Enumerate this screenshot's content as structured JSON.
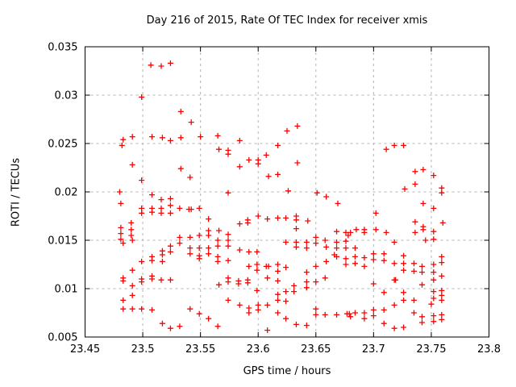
{
  "chart_data": {
    "type": "scatter",
    "title": "Day 216 of 2015, Rate Of TEC Index for receiver xmis",
    "xlabel": "GPS time / hours",
    "ylabel": "ROTI / TECUs",
    "xlim": [
      23.45,
      23.8
    ],
    "ylim": [
      0.005,
      0.035
    ],
    "x_ticks": [
      23.45,
      23.5,
      23.55,
      23.6,
      23.65,
      23.7,
      23.75,
      23.8
    ],
    "x_tick_labels": [
      "23.45",
      "23.5",
      "23.55",
      "23.6",
      "23.65",
      "23.7",
      "23.75",
      "23.8"
    ],
    "y_ticks": [
      0.005,
      0.01,
      0.015,
      0.02,
      0.025,
      0.03,
      0.035
    ],
    "y_tick_labels": [
      "0.005",
      "0.01",
      "0.015",
      "0.02",
      "0.025",
      "0.03",
      "0.035"
    ],
    "grid": true,
    "legend": "none",
    "marker": {
      "shape": "plus",
      "color": "#ff0000",
      "size": 7
    },
    "colors": {
      "background": "#ffffff",
      "axis": "#000000",
      "grid": "#b4b4b4",
      "text": "#000000"
    },
    "series_name": "xmis ROTI",
    "points": [
      [
        23.507,
        0.0331
      ],
      [
        23.516,
        0.033
      ],
      [
        23.524,
        0.0333
      ],
      [
        23.499,
        0.0298
      ],
      [
        23.533,
        0.0283
      ],
      [
        23.542,
        0.0272
      ],
      [
        23.625,
        0.0263
      ],
      [
        23.634,
        0.0268
      ],
      [
        23.483,
        0.0254
      ],
      [
        23.491,
        0.0257
      ],
      [
        23.508,
        0.0257
      ],
      [
        23.517,
        0.0256
      ],
      [
        23.524,
        0.0253
      ],
      [
        23.533,
        0.0256
      ],
      [
        23.55,
        0.0257
      ],
      [
        23.565,
        0.0258
      ],
      [
        23.482,
        0.0248
      ],
      [
        23.584,
        0.0253
      ],
      [
        23.566,
        0.0244
      ],
      [
        23.574,
        0.0243
      ],
      [
        23.574,
        0.0239
      ],
      [
        23.617,
        0.0248
      ],
      [
        23.584,
        0.0226
      ],
      [
        23.592,
        0.0233
      ],
      [
        23.6,
        0.0233
      ],
      [
        23.6,
        0.0229
      ],
      [
        23.607,
        0.0238
      ],
      [
        23.634,
        0.023
      ],
      [
        23.491,
        0.0228
      ],
      [
        23.533,
        0.0224
      ],
      [
        23.499,
        0.0212
      ],
      [
        23.541,
        0.0215
      ],
      [
        23.609,
        0.0216
      ],
      [
        23.617,
        0.0218
      ],
      [
        23.626,
        0.0201
      ],
      [
        23.574,
        0.0199
      ],
      [
        23.651,
        0.0199
      ],
      [
        23.659,
        0.0195
      ],
      [
        23.669,
        0.0188
      ],
      [
        23.711,
        0.0244
      ],
      [
        23.718,
        0.0248
      ],
      [
        23.726,
        0.0248
      ],
      [
        23.736,
        0.0221
      ],
      [
        23.743,
        0.0223
      ],
      [
        23.752,
        0.0217
      ],
      [
        23.736,
        0.0208
      ],
      [
        23.727,
        0.0203
      ],
      [
        23.759,
        0.0204
      ],
      [
        23.759,
        0.0199
      ],
      [
        23.743,
        0.0188
      ],
      [
        23.752,
        0.0183
      ],
      [
        23.702,
        0.0178
      ],
      [
        23.48,
        0.02
      ],
      [
        23.508,
        0.0197
      ],
      [
        23.516,
        0.0192
      ],
      [
        23.524,
        0.0193
      ],
      [
        23.481,
        0.0188
      ],
      [
        23.499,
        0.0183
      ],
      [
        23.499,
        0.0178
      ],
      [
        23.508,
        0.0183
      ],
      [
        23.508,
        0.0179
      ],
      [
        23.516,
        0.0183
      ],
      [
        23.516,
        0.0178
      ],
      [
        23.524,
        0.0186
      ],
      [
        23.524,
        0.0178
      ],
      [
        23.532,
        0.0183
      ],
      [
        23.54,
        0.0182
      ],
      [
        23.542,
        0.0182
      ],
      [
        23.549,
        0.0183
      ],
      [
        23.557,
        0.0172
      ],
      [
        23.481,
        0.0163
      ],
      [
        23.481,
        0.0157
      ],
      [
        23.49,
        0.0168
      ],
      [
        23.49,
        0.0161
      ],
      [
        23.49,
        0.0155
      ],
      [
        23.481,
        0.0151
      ],
      [
        23.483,
        0.0147
      ],
      [
        23.491,
        0.015
      ],
      [
        23.6,
        0.0175
      ],
      [
        23.584,
        0.0167
      ],
      [
        23.591,
        0.0171
      ],
      [
        23.591,
        0.0168
      ],
      [
        23.608,
        0.0172
      ],
      [
        23.617,
        0.0173
      ],
      [
        23.624,
        0.0173
      ],
      [
        23.633,
        0.0175
      ],
      [
        23.633,
        0.0171
      ],
      [
        23.643,
        0.017
      ],
      [
        23.566,
        0.016
      ],
      [
        23.574,
        0.0156
      ],
      [
        23.633,
        0.0162
      ],
      [
        23.668,
        0.0159
      ],
      [
        23.676,
        0.0158
      ],
      [
        23.557,
        0.016
      ],
      [
        23.557,
        0.0155
      ],
      [
        23.685,
        0.0161
      ],
      [
        23.692,
        0.0161
      ],
      [
        23.692,
        0.0158
      ],
      [
        23.68,
        0.0158
      ],
      [
        23.702,
        0.0161
      ],
      [
        23.711,
        0.0158
      ],
      [
        23.736,
        0.0169
      ],
      [
        23.736,
        0.0158
      ],
      [
        23.743,
        0.0164
      ],
      [
        23.743,
        0.0161
      ],
      [
        23.76,
        0.0168
      ],
      [
        23.752,
        0.0159
      ],
      [
        23.565,
        0.015
      ],
      [
        23.565,
        0.0144
      ],
      [
        23.574,
        0.015
      ],
      [
        23.574,
        0.0144
      ],
      [
        23.584,
        0.014
      ],
      [
        23.592,
        0.0138
      ],
      [
        23.599,
        0.0138
      ],
      [
        23.624,
        0.0148
      ],
      [
        23.633,
        0.0148
      ],
      [
        23.633,
        0.0143
      ],
      [
        23.642,
        0.0148
      ],
      [
        23.642,
        0.0142
      ],
      [
        23.65,
        0.0153
      ],
      [
        23.65,
        0.0147
      ],
      [
        23.658,
        0.015
      ],
      [
        23.659,
        0.0143
      ],
      [
        23.668,
        0.0148
      ],
      [
        23.668,
        0.0142
      ],
      [
        23.676,
        0.0149
      ],
      [
        23.676,
        0.0142
      ],
      [
        23.678,
        0.0155
      ],
      [
        23.532,
        0.0153
      ],
      [
        23.541,
        0.0153
      ],
      [
        23.549,
        0.0155
      ],
      [
        23.752,
        0.0151
      ],
      [
        23.745,
        0.015
      ],
      [
        23.718,
        0.0148
      ],
      [
        23.524,
        0.0144
      ],
      [
        23.524,
        0.0138
      ],
      [
        23.532,
        0.0147
      ],
      [
        23.541,
        0.0142
      ],
      [
        23.549,
        0.0142
      ],
      [
        23.557,
        0.0142
      ],
      [
        23.541,
        0.0136
      ],
      [
        23.549,
        0.0134
      ],
      [
        23.557,
        0.0136
      ],
      [
        23.549,
        0.0131
      ],
      [
        23.517,
        0.0139
      ],
      [
        23.517,
        0.0135
      ],
      [
        23.508,
        0.0133
      ],
      [
        23.508,
        0.0129
      ],
      [
        23.499,
        0.0128
      ],
      [
        23.517,
        0.0128
      ],
      [
        23.565,
        0.0133
      ],
      [
        23.565,
        0.0128
      ],
      [
        23.574,
        0.0129
      ],
      [
        23.592,
        0.0123
      ],
      [
        23.599,
        0.0125
      ],
      [
        23.599,
        0.0119
      ],
      [
        23.607,
        0.0123
      ],
      [
        23.609,
        0.0123
      ],
      [
        23.617,
        0.0125
      ],
      [
        23.617,
        0.0118
      ],
      [
        23.624,
        0.0122
      ],
      [
        23.65,
        0.0123
      ],
      [
        23.684,
        0.0142
      ],
      [
        23.684,
        0.0133
      ],
      [
        23.684,
        0.0126
      ],
      [
        23.692,
        0.0132
      ],
      [
        23.692,
        0.0123
      ],
      [
        23.7,
        0.0136
      ],
      [
        23.7,
        0.013
      ],
      [
        23.709,
        0.0136
      ],
      [
        23.709,
        0.0129
      ],
      [
        23.718,
        0.0126
      ],
      [
        23.726,
        0.0134
      ],
      [
        23.726,
        0.0126
      ],
      [
        23.726,
        0.0119
      ],
      [
        23.735,
        0.0126
      ],
      [
        23.735,
        0.0118
      ],
      [
        23.742,
        0.0123
      ],
      [
        23.742,
        0.0117
      ],
      [
        23.752,
        0.0125
      ],
      [
        23.752,
        0.0117
      ],
      [
        23.759,
        0.0133
      ],
      [
        23.759,
        0.0127
      ],
      [
        23.666,
        0.0135
      ],
      [
        23.659,
        0.0128
      ],
      [
        23.668,
        0.0133
      ],
      [
        23.676,
        0.0131
      ],
      [
        23.676,
        0.0125
      ],
      [
        23.491,
        0.0119
      ],
      [
        23.483,
        0.0111
      ],
      [
        23.483,
        0.0108
      ],
      [
        23.499,
        0.011
      ],
      [
        23.499,
        0.0107
      ],
      [
        23.508,
        0.0113
      ],
      [
        23.508,
        0.011
      ],
      [
        23.516,
        0.0109
      ],
      [
        23.524,
        0.0109
      ],
      [
        23.491,
        0.0103
      ],
      [
        23.574,
        0.0111
      ],
      [
        23.574,
        0.0107
      ],
      [
        23.583,
        0.0108
      ],
      [
        23.583,
        0.0105
      ],
      [
        23.591,
        0.0109
      ],
      [
        23.591,
        0.0106
      ],
      [
        23.566,
        0.0104
      ],
      [
        23.608,
        0.0111
      ],
      [
        23.617,
        0.0108
      ],
      [
        23.642,
        0.0117
      ],
      [
        23.642,
        0.0107
      ],
      [
        23.658,
        0.0111
      ],
      [
        23.65,
        0.0107
      ],
      [
        23.631,
        0.0103
      ],
      [
        23.631,
        0.0097
      ],
      [
        23.642,
        0.0101
      ],
      [
        23.599,
        0.0098
      ],
      [
        23.617,
        0.0094
      ],
      [
        23.617,
        0.0088
      ],
      [
        23.624,
        0.0097
      ],
      [
        23.718,
        0.0109
      ],
      [
        23.719,
        0.0109
      ],
      [
        23.7,
        0.0105
      ],
      [
        23.742,
        0.0104
      ],
      [
        23.752,
        0.0109
      ],
      [
        23.759,
        0.0113
      ],
      [
        23.709,
        0.0096
      ],
      [
        23.726,
        0.0096
      ],
      [
        23.752,
        0.0097
      ],
      [
        23.752,
        0.009
      ],
      [
        23.759,
        0.0098
      ],
      [
        23.759,
        0.0093
      ],
      [
        23.759,
        0.0088
      ],
      [
        23.726,
        0.0088
      ],
      [
        23.735,
        0.0088
      ],
      [
        23.718,
        0.0083
      ],
      [
        23.75,
        0.0084
      ],
      [
        23.491,
        0.0093
      ],
      [
        23.483,
        0.0088
      ],
      [
        23.483,
        0.0079
      ],
      [
        23.491,
        0.0079
      ],
      [
        23.499,
        0.0079
      ],
      [
        23.508,
        0.0078
      ],
      [
        23.541,
        0.0079
      ],
      [
        23.549,
        0.0074
      ],
      [
        23.557,
        0.0069
      ],
      [
        23.517,
        0.0064
      ],
      [
        23.524,
        0.0059
      ],
      [
        23.532,
        0.0061
      ],
      [
        23.574,
        0.0088
      ],
      [
        23.584,
        0.0083
      ],
      [
        23.592,
        0.008
      ],
      [
        23.592,
        0.0075
      ],
      [
        23.6,
        0.0083
      ],
      [
        23.6,
        0.0078
      ],
      [
        23.608,
        0.0083
      ],
      [
        23.624,
        0.0087
      ],
      [
        23.617,
        0.0075
      ],
      [
        23.624,
        0.0069
      ],
      [
        23.633,
        0.0063
      ],
      [
        23.642,
        0.0062
      ],
      [
        23.65,
        0.0079
      ],
      [
        23.65,
        0.0073
      ],
      [
        23.658,
        0.0073
      ],
      [
        23.668,
        0.0073
      ],
      [
        23.677,
        0.0074
      ],
      [
        23.679,
        0.0074
      ],
      [
        23.565,
        0.0061
      ],
      [
        23.608,
        0.0057
      ],
      [
        23.684,
        0.0075
      ],
      [
        23.68,
        0.0071
      ],
      [
        23.692,
        0.0075
      ],
      [
        23.692,
        0.0069
      ],
      [
        23.7,
        0.0078
      ],
      [
        23.7,
        0.0072
      ],
      [
        23.709,
        0.0078
      ],
      [
        23.735,
        0.0075
      ],
      [
        23.742,
        0.0071
      ],
      [
        23.742,
        0.0065
      ],
      [
        23.752,
        0.0072
      ],
      [
        23.752,
        0.0066
      ],
      [
        23.759,
        0.0073
      ],
      [
        23.759,
        0.0068
      ],
      [
        23.709,
        0.0064
      ],
      [
        23.718,
        0.0059
      ],
      [
        23.726,
        0.006
      ]
    ]
  }
}
